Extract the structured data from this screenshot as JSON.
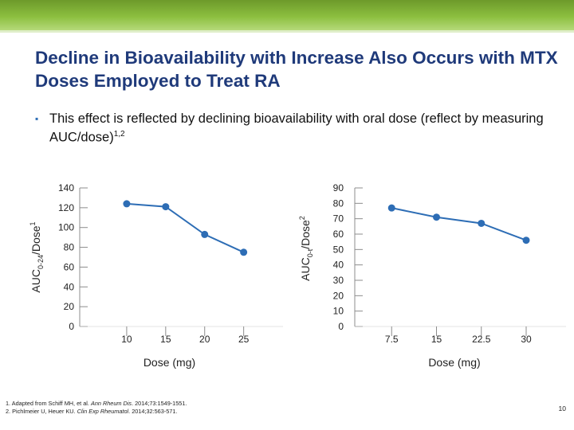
{
  "slide": {
    "title": "Decline in Bioavailability with Increase Also Occurs with MTX Doses Employed to Treat RA",
    "bullet_text": "This effect is reflected by declining bioavailability with oral dose (reflect by measuring AUC/dose)",
    "bullet_refs": "1,2",
    "references": [
      {
        "num": "1.",
        "pre": "Adapted from Schiff MH, et al.",
        "journal": "Ann Rheum Dis",
        "post": ". 2014;73:1549-1551."
      },
      {
        "num": "2.",
        "pre": "Pichlmeier U, Heuer KU.",
        "journal": "Clin Exp Rheumatol",
        "post": ". 2014;32:563-571."
      }
    ],
    "page_number": "10",
    "colors": {
      "accent_green": "#8cbf3f",
      "title_blue": "#1f3a7a",
      "series_blue": "#2d6db5"
    }
  },
  "chart_data": [
    {
      "type": "line",
      "title": "",
      "xlabel": "Dose (mg)",
      "ylabel_main": "AUC",
      "ylabel_sub": "0-24",
      "ylabel_tail": "/Dose",
      "ylabel_sup": "1",
      "x": [
        10,
        15,
        20,
        25
      ],
      "x_tick_labels": [
        "10",
        "15",
        "20",
        "25"
      ],
      "xlim": [
        5,
        28
      ],
      "ylim": [
        0,
        140
      ],
      "y_ticks": [
        0,
        20,
        40,
        60,
        80,
        100,
        120,
        140
      ],
      "series": [
        {
          "name": "AUC0-24/Dose",
          "color": "#2d6db5",
          "values": [
            124,
            121,
            93,
            75
          ]
        }
      ]
    },
    {
      "type": "line",
      "title": "",
      "xlabel": "Dose (mg)",
      "ylabel_main": "AUC",
      "ylabel_sub": "0-t",
      "ylabel_tail": "/Dose",
      "ylabel_sup": "2",
      "x": [
        7.5,
        15,
        22.5,
        30
      ],
      "x_tick_labels": [
        "7.5",
        "15",
        "22.5",
        "30"
      ],
      "xlim": [
        2,
        34
      ],
      "ylim": [
        0,
        90
      ],
      "y_ticks": [
        0,
        10,
        20,
        30,
        40,
        50,
        60,
        70,
        80,
        90
      ],
      "series": [
        {
          "name": "AUC0-t/Dose",
          "color": "#2d6db5",
          "values": [
            77,
            71,
            67,
            56
          ]
        }
      ]
    }
  ]
}
